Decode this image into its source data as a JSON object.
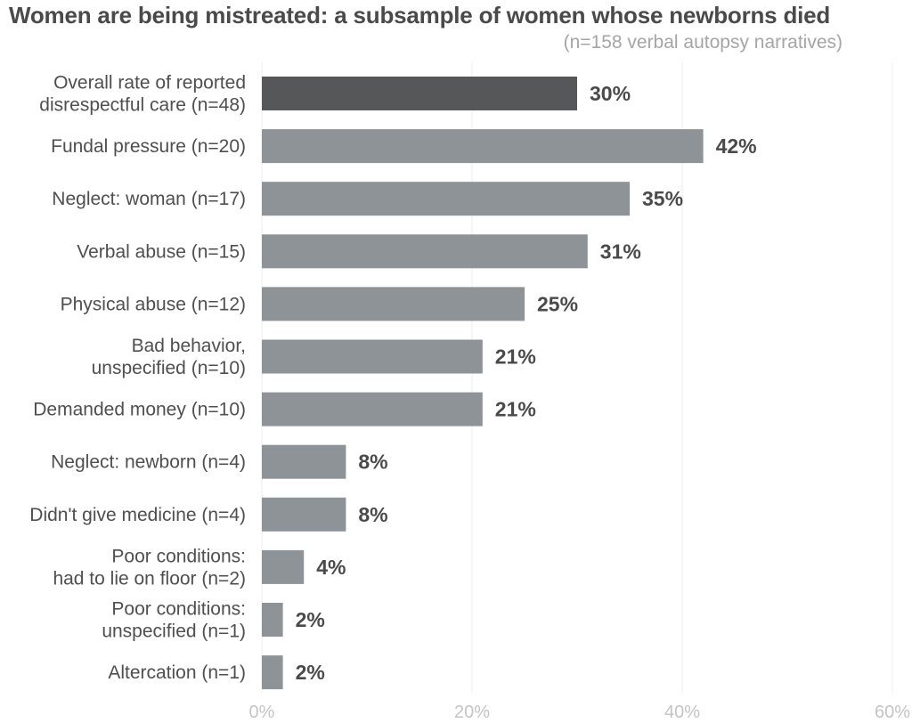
{
  "chart_data": {
    "type": "bar",
    "orientation": "horizontal",
    "title": "Women are being mistreated: a subsample of women whose newborns died",
    "subtitle": "(n=158 verbal autopsy narratives)",
    "categories": [
      [
        "Overall rate of reported",
        "disrespectful care (n=48)"
      ],
      [
        "Fundal pressure (n=20)"
      ],
      [
        "Neglect: woman (n=17)"
      ],
      [
        "Verbal abuse (n=15)"
      ],
      [
        "Physical abuse (n=12)"
      ],
      [
        "Bad behavior,",
        "unspecified (n=10)"
      ],
      [
        "Demanded money (n=10)"
      ],
      [
        "Neglect: newborn (n=4)"
      ],
      [
        "Didn't give medicine (n=4)"
      ],
      [
        "Poor conditions:",
        "had to lie on floor (n=2)"
      ],
      [
        "Poor conditions:",
        "unspecified (n=1)"
      ],
      [
        "Altercation (n=1)"
      ]
    ],
    "values": [
      30,
      42,
      35,
      31,
      25,
      21,
      21,
      8,
      8,
      4,
      2,
      2
    ],
    "value_labels": [
      "30%",
      "42%",
      "35%",
      "31%",
      "25%",
      "21%",
      "21%",
      "8%",
      "8%",
      "4%",
      "2%",
      "2%"
    ],
    "xlim": [
      0,
      60
    ],
    "xticks": [
      0,
      20,
      40,
      60
    ],
    "xtick_labels": [
      "0%",
      "20%",
      "40%",
      "60%"
    ],
    "grid": true,
    "colors": {
      "highlight": "#555759",
      "bar": "#8e9397",
      "value_text": "#4a4a4a",
      "tick_text": "#c4c4c4",
      "grid": "#ececec"
    },
    "highlight_index": 0
  }
}
